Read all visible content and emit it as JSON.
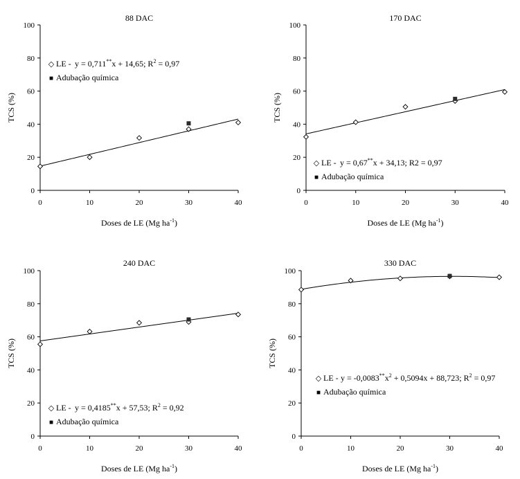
{
  "chart_data": [
    {
      "type": "scatter",
      "title": "88 DAC",
      "xlabel": "Doses de LE (Mg ha",
      "xlabel_sup": "-1",
      "xlabel_end": ")",
      "ylabel": "TCS (%)",
      "xlim": [
        0,
        40
      ],
      "ylim": [
        0,
        100
      ],
      "xticks": [
        "0",
        "10",
        "20",
        "30",
        "40"
      ],
      "yticks": [
        "0",
        "20",
        "40",
        "60",
        "80",
        "100"
      ],
      "legend_placement": "top-left",
      "legend": {
        "le_marker": "◇",
        "le_label": "LE -",
        "equation_parts": [
          "y = 0,711",
          "**",
          "x + 14,65; R",
          "2",
          " = 0,97"
        ],
        "adub_marker": "■",
        "adub_label": "Adubação química"
      },
      "series": [
        {
          "name": "LE",
          "marker": "open-diamond",
          "x": [
            0,
            10,
            20,
            30,
            40
          ],
          "y": [
            14.5,
            20,
            31.7,
            37,
            41
          ]
        },
        {
          "name": "Adubação química",
          "marker": "filled-square",
          "x": [
            30
          ],
          "y": [
            40.5
          ]
        }
      ],
      "fit": {
        "coefficients": [
          14.65,
          0.711,
          0
        ]
      }
    },
    {
      "type": "scatter",
      "title": "170 DAC",
      "xlabel": "Doses de LE (Mg ha",
      "xlabel_sup": "-1",
      "xlabel_end": ")",
      "ylabel": "TCS (%)",
      "xlim": [
        0,
        40
      ],
      "ylim": [
        0,
        100
      ],
      "xticks": [
        "0",
        "10",
        "20",
        "30",
        "40"
      ],
      "yticks": [
        "0",
        "20",
        "40",
        "60",
        "80",
        "100"
      ],
      "legend_placement": "bottom-left",
      "legend": {
        "le_marker": "◇",
        "le_label": "LE -",
        "equation_parts": [
          "y = 0,67",
          "**",
          "x + 34,13; R2 = 0,97",
          "",
          ""
        ],
        "adub_marker": "■",
        "adub_label": "Adubação química"
      },
      "series": [
        {
          "name": "LE",
          "marker": "open-diamond",
          "x": [
            0,
            10,
            20,
            30,
            40
          ],
          "y": [
            32.3,
            41.2,
            50.5,
            54,
            59.5
          ]
        },
        {
          "name": "Adubação química",
          "marker": "filled-square",
          "x": [
            30
          ],
          "y": [
            55.3
          ]
        }
      ],
      "fit": {
        "coefficients": [
          34.13,
          0.67,
          0
        ]
      }
    },
    {
      "type": "scatter",
      "title": "240 DAC",
      "xlabel": "Doses de LE (Mg ha",
      "xlabel_sup": "-1",
      "xlabel_end": ")",
      "ylabel": "TCS (%)",
      "xlim": [
        0,
        40
      ],
      "ylim": [
        0,
        100
      ],
      "xticks": [
        "0",
        "10",
        "20",
        "30",
        "40"
      ],
      "yticks": [
        "0",
        "20",
        "40",
        "60",
        "80",
        "100"
      ],
      "legend_placement": "bottom-left",
      "legend": {
        "le_marker": "◇",
        "le_label": "LE -",
        "equation_parts": [
          "y = 0,4185",
          "**",
          "x + 57,53; R",
          "2",
          " = 0,92"
        ],
        "adub_marker": "■",
        "adub_label": "Adubação química"
      },
      "series": [
        {
          "name": "LE",
          "marker": "open-diamond",
          "x": [
            0,
            10,
            20,
            30,
            40
          ],
          "y": [
            55.5,
            63.2,
            68.5,
            69,
            73.5
          ]
        },
        {
          "name": "Adubação química",
          "marker": "filled-square",
          "x": [
            30
          ],
          "y": [
            70.5
          ]
        }
      ],
      "fit": {
        "coefficients": [
          57.53,
          0.4185,
          0
        ]
      }
    },
    {
      "type": "scatter",
      "title": "330 DAC",
      "xlabel": "Doses de LE (Mg ha",
      "xlabel_sup": "-1",
      "xlabel_end": ")",
      "ylabel": "TCS (%)",
      "xlim": [
        0,
        40
      ],
      "ylim": [
        0,
        100
      ],
      "xticks": [
        "0",
        "10",
        "20",
        "30",
        "40"
      ],
      "yticks": [
        "0",
        "20",
        "40",
        "60",
        "80",
        "100"
      ],
      "legend_placement": "bottom-left",
      "legend": {
        "le_marker": "◇",
        "le_label": "LE -",
        "equation_parts": [
          "y = -0,0083",
          "**",
          "x",
          "2",
          " + 0,5094x + 88,723; R",
          "2",
          " = 0,97"
        ],
        "adub_marker": "■",
        "adub_label": "Adubação química"
      },
      "series": [
        {
          "name": "LE",
          "marker": "open-diamond",
          "x": [
            0,
            10,
            20,
            30,
            40
          ],
          "y": [
            88.5,
            94,
            95.3,
            96.5,
            96
          ]
        },
        {
          "name": "Adubação química",
          "marker": "filled-square",
          "x": [
            30
          ],
          "y": [
            96.8
          ]
        }
      ],
      "fit": {
        "coefficients": [
          88.723,
          0.5094,
          -0.0083
        ]
      }
    }
  ]
}
